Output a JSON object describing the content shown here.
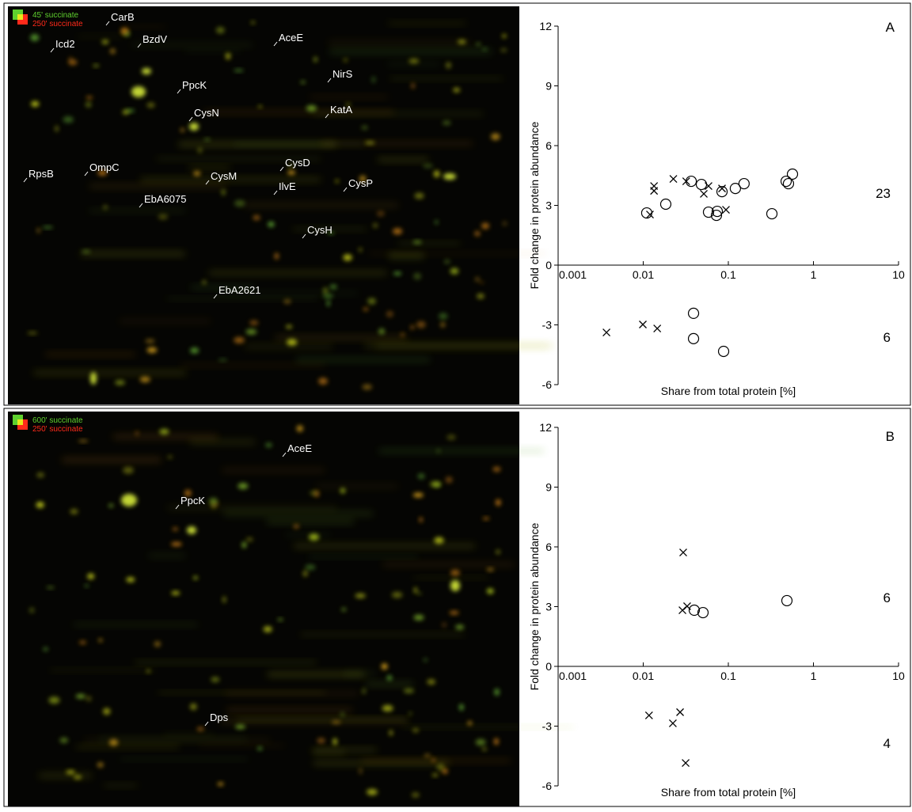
{
  "chart_data": [
    {
      "type": "scatter",
      "xlabel": "Share from total protein [%]",
      "ylabel": "Fold change in protein abundance",
      "xscale": "log",
      "xlim": [
        0.001,
        10
      ],
      "ylim": [
        -6,
        12
      ],
      "xticks": [
        0.001,
        0.01,
        0.1,
        1,
        10
      ],
      "yticks": [
        -6,
        -3,
        0,
        3,
        6,
        9,
        12
      ],
      "annotations": [
        "A",
        "23",
        "6"
      ],
      "series": [
        {
          "marker": "circle",
          "color": "#000000",
          "x": [
            0.011,
            0.0184,
            0.0366,
            0.0483,
            0.0585,
            0.0741,
            0.0725,
            0.0843,
            0.121,
            0.153,
            0.325,
            0.478,
            0.509,
            0.567,
            0.039,
            0.039,
            0.088
          ],
          "values": [
            2.62,
            3.06,
            4.21,
            4.05,
            2.66,
            2.7,
            2.5,
            3.69,
            3.85,
            4.09,
            2.58,
            4.21,
            4.09,
            4.57,
            -2.42,
            -3.69,
            -4.33
          ]
        },
        {
          "marker": "cross",
          "color": "#000000",
          "x": [
            0.0134,
            0.0134,
            0.012,
            0.0226,
            0.032,
            0.0515,
            0.0585,
            0.0843,
            0.0938,
            0.0037,
            0.0099,
            0.0146
          ],
          "values": [
            3.97,
            3.73,
            2.54,
            4.33,
            4.21,
            3.58,
            3.97,
            3.85,
            2.78,
            -3.38,
            -2.98,
            -3.18
          ]
        }
      ]
    },
    {
      "type": "scatter",
      "xlabel": "Share from total protein [%]",
      "ylabel": "Fold change in protein abundance",
      "xscale": "log",
      "xlim": [
        0.001,
        10
      ],
      "ylim": [
        -6,
        12
      ],
      "xticks": [
        0.001,
        0.01,
        0.1,
        1,
        10
      ],
      "yticks": [
        -6,
        -3,
        0,
        3,
        6,
        9,
        12
      ],
      "annotations": [
        "B",
        "6",
        "4"
      ],
      "series": [
        {
          "marker": "circle",
          "color": "#000000",
          "x": [
            0.0398,
            0.0504,
            0.488
          ],
          "values": [
            2.82,
            2.7,
            3.3
          ]
        },
        {
          "marker": "cross",
          "color": "#000000",
          "x": [
            0.0295,
            0.0328,
            0.0289,
            0.0223,
            0.0271,
            0.0117,
            0.0315
          ],
          "values": [
            5.72,
            3.02,
            2.82,
            -2.86,
            -2.3,
            -2.46,
            -4.85
          ]
        }
      ]
    }
  ],
  "gels": [
    {
      "legend": [
        {
          "text": "45' succinate",
          "color": "#5fd12e"
        },
        {
          "text": "250' succinate",
          "color": "#ff2a1a"
        }
      ],
      "labels": [
        "CarB",
        "BzdV",
        "AceE",
        "Icd2",
        "NirS",
        "PpcK",
        "KatA",
        "CysN",
        "CysD",
        "OmpC",
        "RpsB",
        "CysM",
        "IlvE",
        "CysP",
        "EbA6075",
        "CysH",
        "EbA2621"
      ]
    },
    {
      "legend": [
        {
          "text": "600' succinate",
          "color": "#5fd12e"
        },
        {
          "text": "250' succinate",
          "color": "#ff2a1a"
        }
      ],
      "labels": [
        "AceE",
        "PpcK",
        "Dps"
      ]
    }
  ]
}
